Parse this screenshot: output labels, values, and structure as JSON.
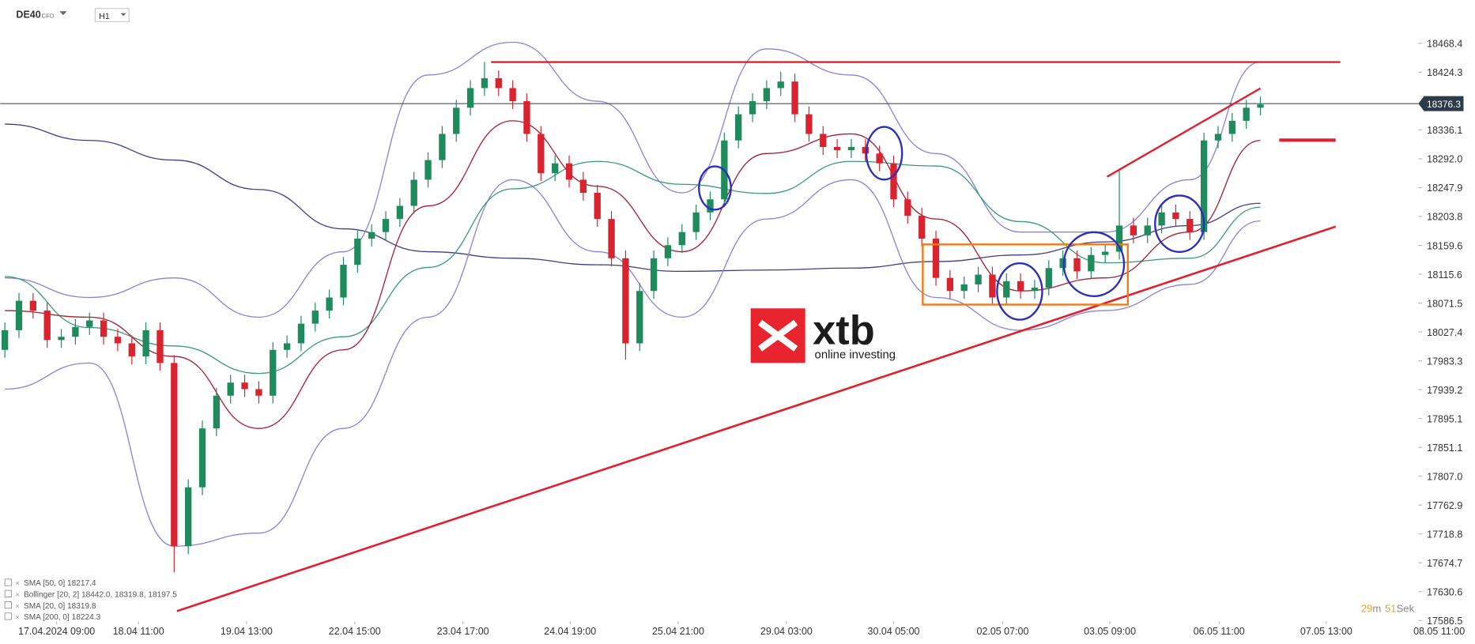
{
  "header": {
    "symbol": "DE40",
    "instrument": "CFD",
    "timeframe": "H1"
  },
  "chart_data": {
    "type": "candlestick",
    "xlim": [
      -0.333,
      104.2
    ],
    "xticks": [
      {
        "value": 3.67,
        "label": "17.04.2024  09:00"
      },
      {
        "value": 9.47,
        "label": "18.04  11:00"
      },
      {
        "value": 17.13,
        "label": "19.04  13:00"
      },
      {
        "value": 24.8,
        "label": "22.04  15:00"
      },
      {
        "value": 32.47,
        "label": "23.04  17:00"
      },
      {
        "value": 40.07,
        "label": "24.04  19:00"
      },
      {
        "value": 47.73,
        "label": "25.04  21:00"
      },
      {
        "value": 55.4,
        "label": "29.04  03:00"
      },
      {
        "value": 63,
        "label": "30.04  05:00"
      },
      {
        "value": 70.73,
        "label": "02.05  07:00"
      },
      {
        "value": 78.33,
        "label": "03.05  09:00"
      },
      {
        "value": 86.07,
        "label": "06.05  11:00"
      },
      {
        "value": 93.67,
        "label": "07.05  13:00"
      },
      {
        "value": 101.67,
        "label": "08.05  11:00"
      }
    ],
    "ylim": [
      17586.5,
      18534.6
    ],
    "yticks": [
      18468.4,
      18424.3,
      18336.1,
      {
        "value": 18292,
        "label": "18292.0"
      },
      18247.9,
      18203.8,
      18159.6,
      18115.6,
      18071.5,
      18027.4,
      17983.3,
      17939.2,
      17895.1,
      17851.1,
      {
        "value": 17807,
        "label": "17807.0"
      },
      17762.9,
      17718.8,
      17674.7,
      17630.6,
      17586.5
    ],
    "up_color": "#1f8a5c",
    "down_color": "#d9232e",
    "open": [
      18000,
      18030,
      18075,
      18060,
      18015,
      18020,
      18035,
      18045,
      18020,
      18010,
      17990,
      18030,
      17980,
      17700,
      17790,
      17880,
      17930,
      17950,
      17940,
      17930,
      18000,
      18010,
      18040,
      18060,
      18080,
      18130,
      18170,
      18180,
      18200,
      18220,
      18260,
      18290,
      18330,
      18370,
      18400,
      18415,
      18400,
      18380,
      18330,
      18270,
      18285,
      18260,
      18240,
      18200,
      18140,
      18010,
      18090,
      18140,
      18160,
      18180,
      18210,
      18230,
      18320,
      18360,
      18380,
      18400,
      18410,
      18360,
      18330,
      18310,
      18305,
      18310,
      18300,
      18285,
      18230,
      18205,
      18170,
      18110,
      18090,
      18100,
      18115,
      18080,
      18105,
      18090,
      18095,
      18125,
      18140,
      18120,
      18145,
      18150,
      18190,
      18175,
      18190,
      18210,
      18200,
      18180,
      18320,
      18330,
      18350,
      18370
    ],
    "high": [
      18042,
      18087,
      18087,
      18072,
      18032,
      18047,
      18057,
      18057,
      18032,
      18022,
      18042,
      18042,
      17992,
      17802,
      17892,
      17942,
      17962,
      17962,
      17952,
      18012,
      18022,
      18052,
      18072,
      18092,
      18142,
      18182,
      18192,
      18212,
      18232,
      18272,
      18302,
      18342,
      18382,
      18412,
      18440,
      18427,
      18412,
      18392,
      18342,
      18297,
      18297,
      18272,
      18252,
      18212,
      18152,
      18102,
      18152,
      18172,
      18192,
      18222,
      18242,
      18332,
      18372,
      18392,
      18412,
      18425,
      18422,
      18372,
      18342,
      18322,
      18322,
      18322,
      18312,
      18297,
      18242,
      18217,
      18182,
      18122,
      18112,
      18127,
      18127,
      18117,
      18117,
      18107,
      18137,
      18152,
      18152,
      18157,
      18162,
      18275,
      18202,
      18202,
      18222,
      18222,
      18212,
      18332,
      18342,
      18362,
      18382,
      18387
    ],
    "low": [
      17988,
      18018,
      18048,
      18003,
      18003,
      18008,
      18023,
      18008,
      17998,
      17978,
      17978,
      17968,
      17660,
      17688,
      17778,
      17868,
      17918,
      17928,
      17918,
      17918,
      17988,
      17998,
      18028,
      18048,
      18068,
      18118,
      18158,
      18168,
      18188,
      18208,
      18248,
      18278,
      18318,
      18358,
      18388,
      18388,
      18368,
      18318,
      18258,
      18258,
      18248,
      18228,
      18188,
      18128,
      17985,
      17998,
      18078,
      18128,
      18148,
      18168,
      18198,
      18218,
      18308,
      18348,
      18368,
      18388,
      18348,
      18318,
      18298,
      18293,
      18293,
      18288,
      18273,
      18218,
      18193,
      18158,
      18098,
      18078,
      18078,
      18088,
      18068,
      18068,
      18078,
      18078,
      18083,
      18113,
      18108,
      18108,
      18133,
      18138,
      18163,
      18163,
      18178,
      18188,
      18168,
      18168,
      18308,
      18318,
      18338,
      18358
    ],
    "close": [
      18030,
      18075,
      18060,
      18015,
      18020,
      18035,
      18045,
      18020,
      18010,
      17990,
      18030,
      17980,
      17700,
      17790,
      17880,
      17930,
      17950,
      17940,
      17930,
      18000,
      18010,
      18040,
      18060,
      18080,
      18130,
      18170,
      18180,
      18200,
      18220,
      18260,
      18290,
      18330,
      18370,
      18400,
      18415,
      18400,
      18380,
      18330,
      18270,
      18285,
      18260,
      18240,
      18200,
      18140,
      18010,
      18090,
      18140,
      18160,
      18180,
      18210,
      18230,
      18320,
      18360,
      18380,
      18400,
      18410,
      18360,
      18330,
      18310,
      18305,
      18310,
      18300,
      18285,
      18230,
      18205,
      18170,
      18110,
      18090,
      18100,
      18115,
      18080,
      18105,
      18090,
      18095,
      18125,
      18140,
      18120,
      18145,
      18150,
      18190,
      18175,
      18190,
      18210,
      18200,
      18180,
      18320,
      18330,
      18350,
      18370,
      18375
    ],
    "indicators": [
      {
        "color": "#3b3f86",
        "x": [
          0,
          6,
          12,
          18,
          24,
          30,
          36,
          42,
          48,
          54,
          60,
          66,
          72,
          78,
          84,
          89
        ],
        "values": [
          18345,
          18320,
          18290,
          18245,
          18185,
          18150,
          18140,
          18130,
          18120,
          18122,
          18125,
          18135,
          18145,
          18165,
          18190,
          18224
        ]
      },
      {
        "color": "#8b82d6",
        "x": [
          0,
          6,
          12,
          18,
          24,
          30,
          36,
          42,
          48,
          54,
          60,
          66,
          72,
          78,
          84,
          89
        ],
        "values": [
          18110,
          18080,
          18110,
          18050,
          18150,
          18420,
          18470,
          18380,
          18240,
          18460,
          18420,
          18300,
          18180,
          18180,
          18260,
          18440
        ]
      },
      {
        "color": "#8b82d6",
        "x": [
          0,
          6,
          12,
          18,
          24,
          30,
          36,
          42,
          48,
          54,
          60,
          66,
          72,
          78,
          84,
          89
        ],
        "values": [
          17940,
          17980,
          17700,
          17720,
          17880,
          18050,
          18260,
          18150,
          18050,
          18200,
          18260,
          18080,
          18030,
          18060,
          18100,
          18197
        ]
      },
      {
        "color": "#3a9a78",
        "x": [
          0,
          6,
          12,
          18,
          24,
          30,
          36,
          42,
          48,
          54,
          60,
          66,
          72,
          78,
          84,
          89
        ],
        "values": [
          18112,
          18034,
          18006,
          17964,
          18020,
          18126,
          18246,
          18288,
          18253,
          18239,
          18288,
          18281,
          18196,
          18133,
          18140,
          18218
        ]
      },
      {
        "color": "#a81c30",
        "x": [
          0,
          6,
          12,
          18,
          24,
          30,
          36,
          42,
          48,
          54,
          60,
          66,
          72,
          78,
          84,
          89
        ],
        "values": [
          18060,
          18050,
          17990,
          17880,
          18000,
          18220,
          18350,
          18250,
          18150,
          18300,
          18330,
          18200,
          18090,
          18110,
          18180,
          18320
        ]
      }
    ],
    "current_price": 18376.3,
    "legend": [
      "SMA [50, 0]  18217.4",
      "Bollinger [20, 2]  18442.0,  18319.8,  18197.5",
      "SMA [20, 0]  18319.8",
      "SMA [200, 0]  18224.3"
    ]
  },
  "timer": {
    "minutes": 29,
    "minute_unit": "m",
    "seconds": 51,
    "second_unit": "Sek"
  },
  "logo": {
    "brand": "xtb",
    "tagline": "online investing"
  }
}
